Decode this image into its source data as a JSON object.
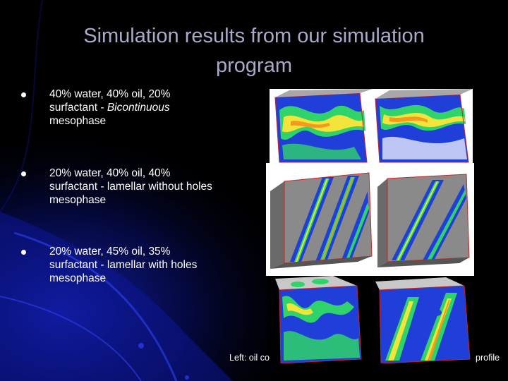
{
  "slide": {
    "title_line1": "Simulation results from our simulation",
    "title_line2": "program",
    "bullets": [
      {
        "line1": "40% water, 40% oil, 20%",
        "line2_plain": "surfactant - ",
        "line2_italic": "Bicontinuous",
        "line3": "mesophase"
      },
      {
        "line1": "20% water, 40% oil, 40%",
        "line2_plain": "surfactant - lamellar without holes",
        "line2_italic": "",
        "line3": "mesophase"
      },
      {
        "line1": "20% water, 45% oil, 35%",
        "line2_plain": "surfactant - lamellar with holes",
        "line2_italic": "",
        "line3": "mesophase"
      }
    ],
    "caption_left": "Left: oil co",
    "caption_right": "profile"
  },
  "colors": {
    "background": "#000000",
    "title": "#a9a9c9",
    "text": "#ffffff",
    "swirl_accent": "#1a2ad0",
    "sim_blue": "#1f3fd8",
    "sim_green": "#2fd36a",
    "sim_yellow": "#f2e43a",
    "sim_orange": "#f39a1e"
  }
}
